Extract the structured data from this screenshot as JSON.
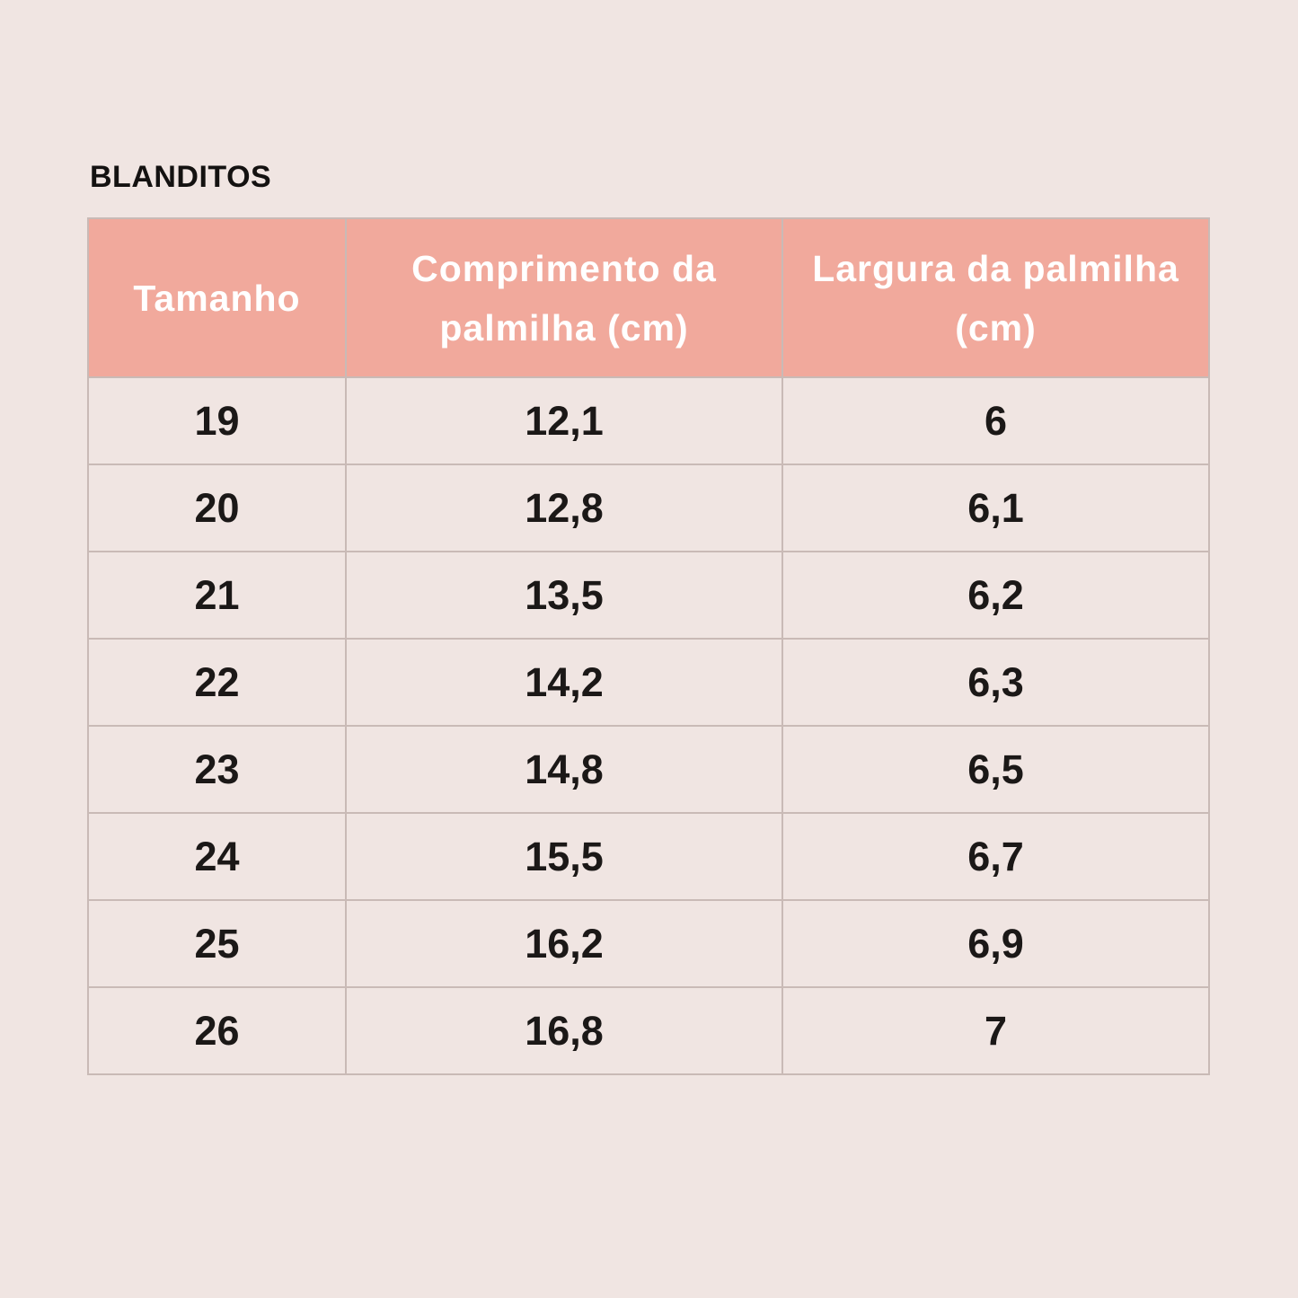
{
  "title": "BLANDITOS",
  "colors": {
    "page_bg": "#f0e5e2",
    "header_bg": "#f1a99c",
    "header_text": "#ffffff",
    "cell_text": "#1b1817",
    "border": "#c9bab6"
  },
  "chart_data": {
    "type": "table",
    "title": "BLANDITOS",
    "columns": [
      "Tamanho",
      "Comprimento da palmilha (cm)",
      "Largura da palmilha (cm)"
    ],
    "rows": [
      [
        "19",
        "12,1",
        "6"
      ],
      [
        "20",
        "12,8",
        "6,1"
      ],
      [
        "21",
        "13,5",
        "6,2"
      ],
      [
        "22",
        "14,2",
        "6,3"
      ],
      [
        "23",
        "14,8",
        "6,5"
      ],
      [
        "24",
        "15,5",
        "6,7"
      ],
      [
        "25",
        "16,2",
        "6,9"
      ],
      [
        "26",
        "16,8",
        "7"
      ]
    ]
  }
}
